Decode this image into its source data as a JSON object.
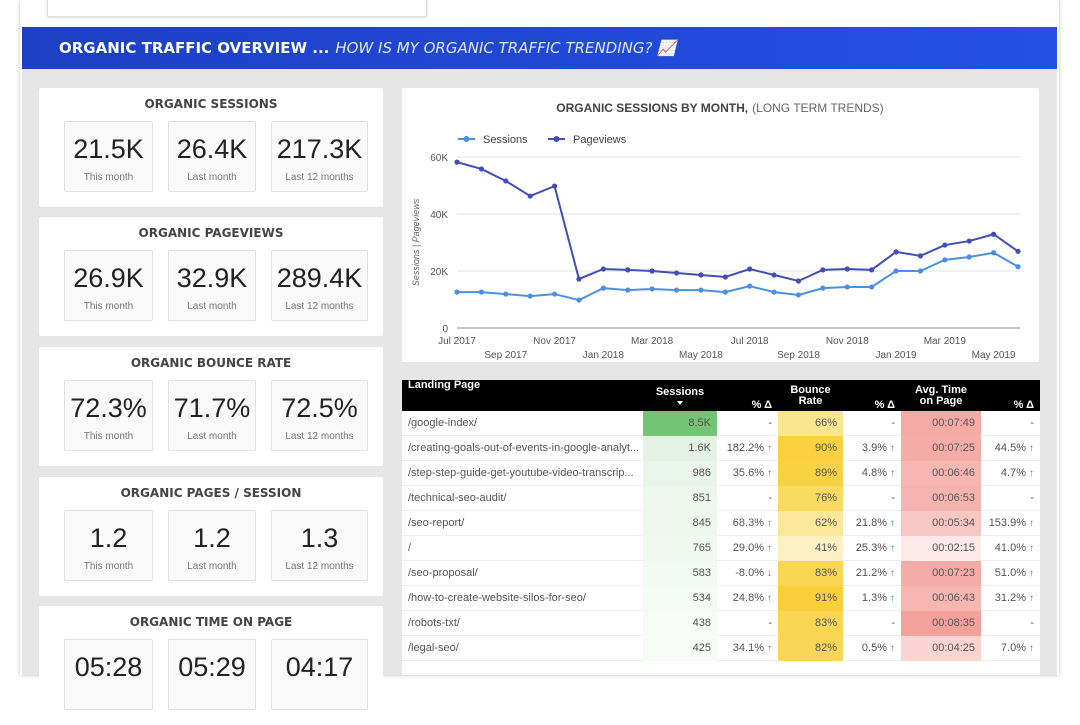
{
  "banner": {
    "title": "ORGANIC TRAFFIC OVERVIEW ...",
    "subtitle": "HOW IS MY ORGANIC TRAFFIC TRENDING? 📈"
  },
  "kpis": [
    {
      "title": "ORGANIC SESSIONS",
      "items": [
        {
          "value": "21.5K",
          "label": "This month"
        },
        {
          "value": "26.4K",
          "label": "Last month"
        },
        {
          "value": "217.3K",
          "label": "Last 12 months"
        }
      ]
    },
    {
      "title": "ORGANIC PAGEVIEWS",
      "items": [
        {
          "value": "26.9K",
          "label": "This month"
        },
        {
          "value": "32.9K",
          "label": "Last month"
        },
        {
          "value": "289.4K",
          "label": "Last 12 months"
        }
      ]
    },
    {
      "title": "ORGANIC BOUNCE RATE",
      "items": [
        {
          "value": "72.3%",
          "label": "This month"
        },
        {
          "value": "71.7%",
          "label": "Last month"
        },
        {
          "value": "72.5%",
          "label": "Last 12 months"
        }
      ]
    },
    {
      "title": "ORGANIC PAGES / SESSION",
      "items": [
        {
          "value": "1.2",
          "label": "This month"
        },
        {
          "value": "1.2",
          "label": "Last month"
        },
        {
          "value": "1.3",
          "label": "Last 12 months"
        }
      ]
    },
    {
      "title": "ORGANIC TIME ON PAGE",
      "items": [
        {
          "value": "05:28"
        },
        {
          "value": "05:29"
        },
        {
          "value": "04:17"
        }
      ]
    }
  ],
  "chart_data": {
    "type": "line",
    "title": "ORGANIC SESSIONS BY MONTH,",
    "subtitle": "(LONG TERM TRENDS)",
    "y_label": "Sessions  |  Pageviews",
    "categories": [
      "Jul 2017",
      null,
      "Sep 2017",
      null,
      "Nov 2017",
      null,
      "Jan 2018",
      null,
      "Mar 2018",
      null,
      "May 2018",
      null,
      "Jul 2018",
      null,
      "Sep 2018",
      null,
      "Nov 2018",
      null,
      "Jan 2019",
      null,
      "Mar 2019",
      null,
      "May 2019",
      null
    ],
    "series": [
      {
        "name": "Sessions",
        "color": "#4a90e2",
        "values": [
          12600,
          12600,
          11900,
          11200,
          11900,
          9800,
          14000,
          13300,
          13700,
          13300,
          13300,
          12600,
          14700,
          12600,
          11600,
          14000,
          14400,
          14400,
          20000,
          20000,
          23900,
          24900,
          26400,
          21500
        ]
      },
      {
        "name": "Pageviews",
        "color": "#3f4fb5",
        "values": [
          58200,
          55800,
          51600,
          46300,
          49800,
          17200,
          20700,
          20400,
          20000,
          19300,
          18600,
          17900,
          20700,
          18600,
          16500,
          20400,
          20700,
          20400,
          26700,
          25300,
          29100,
          30500,
          32900,
          26900
        ]
      }
    ],
    "ylim": [
      0,
      60000
    ],
    "yticks": [
      0,
      {
        "value": 20000,
        "label": "20K"
      },
      {
        "value": 40000,
        "label": "40K"
      },
      {
        "value": 60000,
        "label": "60K"
      }
    ],
    "grid": true,
    "legend": "top-left"
  },
  "table": {
    "headers": [
      "Landing Page",
      "Sessions",
      "% Δ",
      "Bounce Rate",
      "% Δ",
      "Avg. Time on Page",
      "% Δ"
    ],
    "rows": [
      [
        "/google-index/",
        "8.5K",
        "-",
        "66%",
        "-",
        "00:07:49",
        "-"
      ],
      [
        "/creating-goals-out-of-events-in-google-analyt...",
        "1.6K",
        {
          "text": "182.2%",
          "arrow": "↑"
        },
        "90%",
        {
          "text": "3.9%",
          "arrow": "↑"
        },
        "00:07:25",
        {
          "text": "44.5%",
          "arrow": "↑"
        }
      ],
      [
        "/step-step-guide-get-youtube-video-transcrip...",
        "986",
        {
          "text": "35.6%",
          "arrow": "↑"
        },
        "89%",
        {
          "text": "4.8%",
          "arrow": "↑"
        },
        "00:06:46",
        {
          "text": "4.7%",
          "arrow": "↑"
        }
      ],
      [
        "/technical-seo-audit/",
        "851",
        "-",
        "76%",
        "-",
        "00:06:53",
        "-"
      ],
      [
        "/seo-report/",
        "845",
        {
          "text": "68.3%",
          "arrow": "↑"
        },
        "62%",
        {
          "text": "21.8%",
          "arrow": "↑"
        },
        "00:05:34",
        {
          "text": "153.9%",
          "arrow": "↑"
        }
      ],
      [
        "/",
        "765",
        {
          "text": "29.0%",
          "arrow": "↑"
        },
        "41%",
        {
          "text": "25.3%",
          "arrow": "↑"
        },
        "00:02:15",
        {
          "text": "41.0%",
          "arrow": "↑"
        }
      ],
      [
        "/seo-proposal/",
        "583",
        {
          "text": "-8.0%",
          "arrow": "↓"
        },
        "83%",
        {
          "text": "21.2%",
          "arrow": "↑"
        },
        "00:07:23",
        {
          "text": "51.0%",
          "arrow": "↑"
        }
      ],
      [
        "/how-to-create-website-silos-for-seo/",
        "534",
        {
          "text": "24.8%",
          "arrow": "↑"
        },
        "91%",
        {
          "text": "1.3%",
          "arrow": "↑"
        },
        "00:06:43",
        {
          "text": "31.2%",
          "arrow": "↑"
        }
      ],
      [
        "/robots-txt/",
        "438",
        "-",
        "83%",
        "-",
        "00:08:35",
        "-"
      ],
      [
        "/legal-seo/",
        "425",
        {
          "text": "34.1%",
          "arrow": "↑"
        },
        "82%",
        {
          "text": "0.5%",
          "arrow": "↑"
        },
        "00:04:25",
        {
          "text": "7.0%",
          "arrow": "↑"
        }
      ]
    ]
  }
}
